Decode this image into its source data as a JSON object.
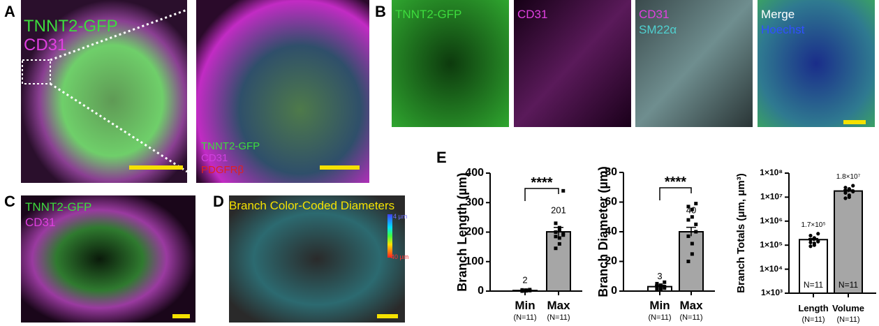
{
  "panels": {
    "A": {
      "label": "A",
      "labels": [
        "TNNT2-GFP",
        "CD31"
      ],
      "inset_labels": [
        "TNNT2-GFP",
        "CD31",
        "PDGFRβ"
      ]
    },
    "B": {
      "label": "B",
      "tiles": [
        [
          "TNNT2-GFP"
        ],
        [
          "CD31"
        ],
        [
          "CD31",
          "SM22α"
        ],
        [
          "Merge",
          "Hoechst"
        ]
      ]
    },
    "C": {
      "label": "C",
      "labels": [
        "TNNT2-GFP",
        "CD31"
      ]
    },
    "D": {
      "label": "D",
      "title": "Branch Color-Coded Diameters",
      "scale_labels": [
        "4 µm",
        "40 µm"
      ]
    },
    "E": {
      "label": "E"
    }
  },
  "chart_data": [
    {
      "type": "bar",
      "ylabel": "Branch Length (µm)",
      "categories": [
        "Min",
        "Max"
      ],
      "n_labels": [
        "(N=11)",
        "(N=11)"
      ],
      "values": [
        2,
        201
      ],
      "errors": [
        1,
        15
      ],
      "colors": [
        "#ffffff",
        "#a6a6a6"
      ],
      "points": [
        [
          5,
          4,
          3,
          3,
          2,
          2,
          2,
          1,
          1,
          1,
          0
        ],
        [
          340,
          230,
          215,
          205,
          200,
          195,
          190,
          185,
          180,
          160,
          145
        ]
      ],
      "ylim": [
        0,
        400
      ],
      "yticks": [
        0,
        100,
        200,
        300,
        400
      ],
      "significance": "****"
    },
    {
      "type": "bar",
      "ylabel": "Branch Diameter (µm)",
      "categories": [
        "Min",
        "Max"
      ],
      "n_labels": [
        "(N=11)",
        "(N=11)"
      ],
      "values": [
        3,
        40
      ],
      "errors": [
        1,
        3
      ],
      "colors": [
        "#ffffff",
        "#a6a6a6"
      ],
      "points": [
        [
          6,
          5,
          4,
          4,
          3,
          3,
          2,
          2,
          2,
          1,
          1
        ],
        [
          59,
          57,
          55,
          50,
          48,
          45,
          40,
          37,
          32,
          25,
          20
        ]
      ],
      "ylim": [
        0,
        80
      ],
      "yticks": [
        0,
        20,
        40,
        60,
        80
      ],
      "significance": "****"
    },
    {
      "type": "bar",
      "ylabel": "Branch Totals (μm, μm³)",
      "categories": [
        "Length",
        "Volume"
      ],
      "n_labels": [
        "(N=11)",
        "(N=11)"
      ],
      "values": [
        170000,
        18000000
      ],
      "value_labels": [
        "1.7×10⁵",
        "1.8×10⁷"
      ],
      "errors": [
        20000,
        2000000
      ],
      "inner_labels": [
        "N=11",
        "N=11"
      ],
      "colors": [
        "#ffffff",
        "#a6a6a6"
      ],
      "points": [
        [
          300000,
          250000,
          200000,
          180000,
          170000,
          150000,
          140000,
          130000,
          120000,
          100000,
          90000
        ],
        [
          30000000,
          25000000,
          22000000,
          20000000,
          19000000,
          18000000,
          17000000,
          15000000,
          12000000,
          10000000,
          9000000
        ]
      ],
      "ylim": [
        1000,
        100000000
      ],
      "log_scale": true,
      "yticks": [
        {
          "value": 1000,
          "label": "1×10³"
        },
        {
          "value": 10000,
          "label": "1×10⁴"
        },
        {
          "value": 100000,
          "label": "1×10⁵"
        },
        {
          "value": 1000000,
          "label": "1×10⁶"
        },
        {
          "value": 10000000,
          "label": "1×10⁷"
        },
        {
          "value": 100000000,
          "label": "1×10⁸"
        }
      ]
    }
  ]
}
